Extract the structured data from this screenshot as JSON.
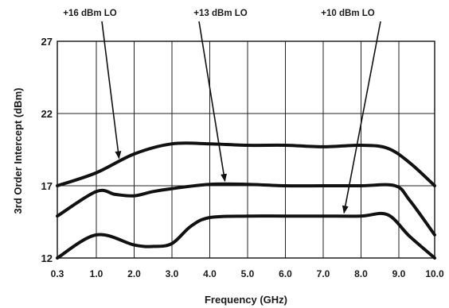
{
  "chart_data": {
    "type": "line",
    "title": "",
    "xlabel": "Frequency (GHz)",
    "ylabel": "3rd Order Intercept (dBm)",
    "xlim": [
      0.3,
      10.0
    ],
    "ylim": [
      12,
      27
    ],
    "grid": true,
    "x_ticks": [
      "0.3",
      "1.0",
      "2.0",
      "3.0",
      "4.0",
      "5.0",
      "6.0",
      "7.0",
      "8.0",
      "9.0",
      "10.0"
    ],
    "y_ticks": [
      "12",
      "17",
      "22",
      "27"
    ],
    "series": [
      {
        "name": "+16 dBm LO",
        "x": [
          0.3,
          1.0,
          2.0,
          3.0,
          4.0,
          5.0,
          6.0,
          7.0,
          8.0,
          8.7,
          9.3,
          10.0
        ],
        "values": [
          17.0,
          17.9,
          19.2,
          19.9,
          19.9,
          19.8,
          19.8,
          19.7,
          19.8,
          19.6,
          18.6,
          17.0
        ]
      },
      {
        "name": "+13 dBm LO",
        "x": [
          0.3,
          1.0,
          1.5,
          2.0,
          2.5,
          3.0,
          4.0,
          5.0,
          6.0,
          7.0,
          8.0,
          8.9,
          9.3,
          10.0
        ],
        "values": [
          14.9,
          16.6,
          16.4,
          16.3,
          16.6,
          16.8,
          17.1,
          17.1,
          17.0,
          17.0,
          17.0,
          17.0,
          16.0,
          13.6
        ]
      },
      {
        "name": "+10 dBm LO",
        "x": [
          0.3,
          1.0,
          2.0,
          2.5,
          3.0,
          3.5,
          4.0,
          5.0,
          6.0,
          7.0,
          8.0,
          8.7,
          9.3,
          10.0
        ],
        "values": [
          12.0,
          13.6,
          12.9,
          12.8,
          13.0,
          14.2,
          14.8,
          14.9,
          14.9,
          14.9,
          14.9,
          15.0,
          13.5,
          12.0
        ]
      }
    ],
    "annotations": [
      {
        "text": "+16 dBm LO",
        "series": 0,
        "x": 1.6
      },
      {
        "text": "+13 dBm LO",
        "series": 1,
        "x": 4.4
      },
      {
        "text": "+10 dBm LO",
        "series": 2,
        "x": 7.55
      }
    ]
  }
}
